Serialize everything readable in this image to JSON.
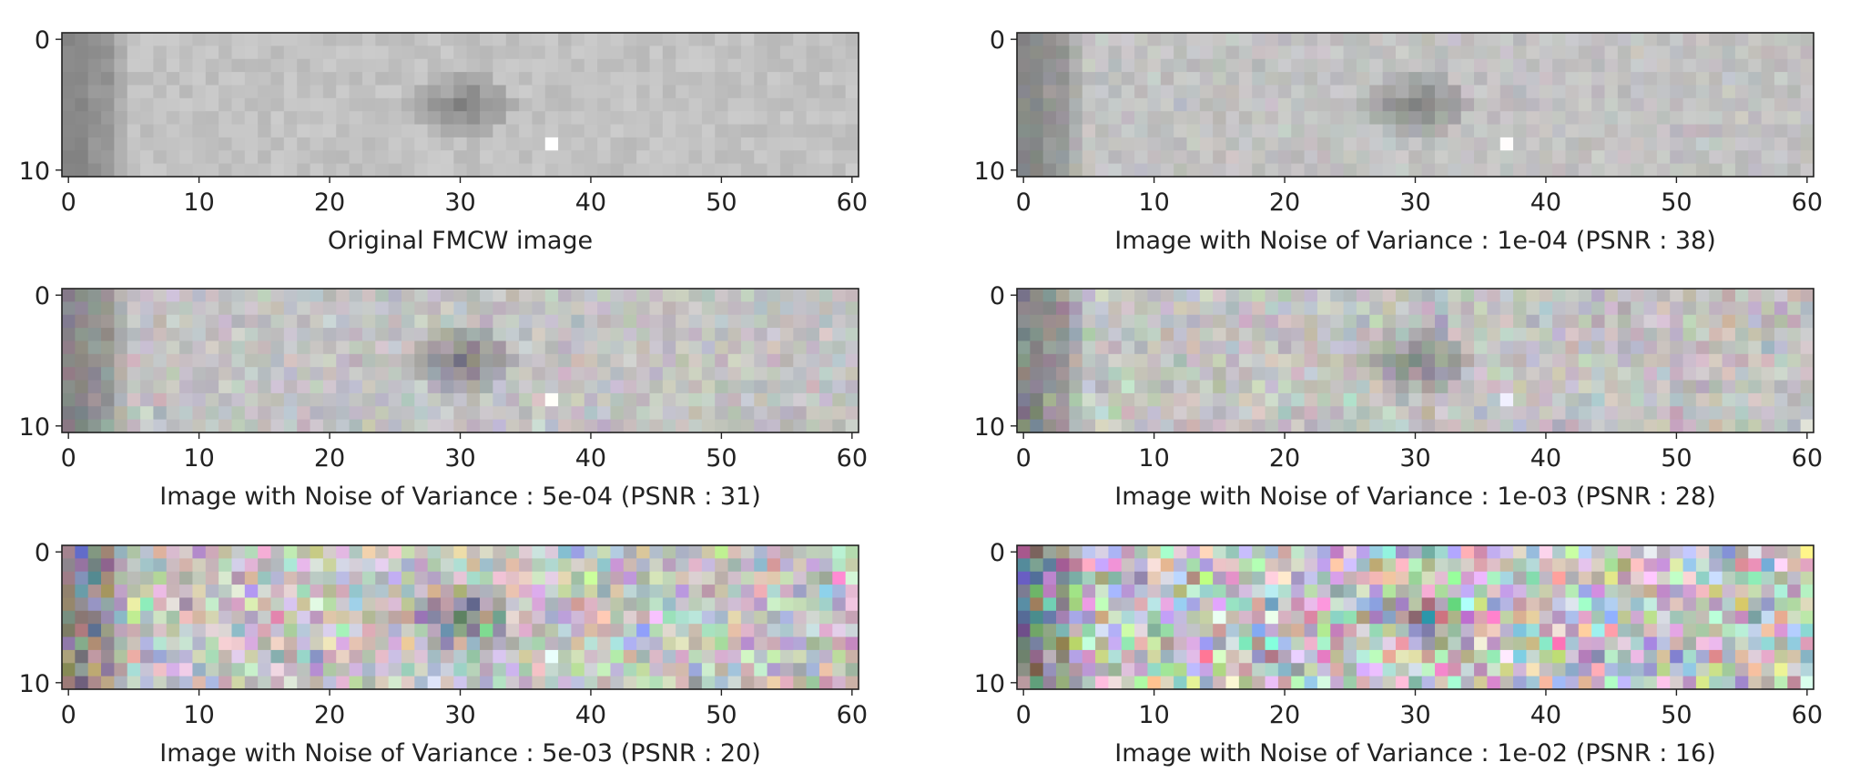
{
  "figure": {
    "colors": {
      "background": "#ffffff",
      "axis": "#222222",
      "text": "#222222"
    }
  },
  "chart_data": [
    {
      "type": "heatmap",
      "title": "",
      "xlabel": "Original FMCW image",
      "ylabel": "",
      "columns": 61,
      "rows": 11,
      "x_ticks": [
        0,
        10,
        20,
        30,
        40,
        50,
        60
      ],
      "y_ticks": [
        0,
        10
      ],
      "xlim": [
        -0.5,
        60.5
      ],
      "ylim": [
        10.5,
        -0.5
      ],
      "noise_variance": 0,
      "features": [
        "dark band at x 0-4",
        "dark blob near x 27-33, y 3-7",
        "bright pixel at x 37, y 8"
      ]
    },
    {
      "type": "heatmap",
      "title": "",
      "xlabel": "Image with Noise of Variance : 1e-04 (PSNR : 38)",
      "ylabel": "",
      "columns": 61,
      "rows": 11,
      "x_ticks": [
        0,
        10,
        20,
        30,
        40,
        50,
        60
      ],
      "y_ticks": [
        0,
        10
      ],
      "xlim": [
        -0.5,
        60.5
      ],
      "ylim": [
        10.5,
        -0.5
      ],
      "noise_variance": 0.0001,
      "psnr": 38
    },
    {
      "type": "heatmap",
      "title": "",
      "xlabel": "Image with Noise of Variance : 5e-04 (PSNR : 31)",
      "ylabel": "",
      "columns": 61,
      "rows": 11,
      "x_ticks": [
        0,
        10,
        20,
        30,
        40,
        50,
        60
      ],
      "y_ticks": [
        0,
        10
      ],
      "xlim": [
        -0.5,
        60.5
      ],
      "ylim": [
        10.5,
        -0.5
      ],
      "noise_variance": 0.0005,
      "psnr": 31
    },
    {
      "type": "heatmap",
      "title": "",
      "xlabel": "Image with Noise of Variance : 1e-03 (PSNR : 28)",
      "ylabel": "",
      "columns": 61,
      "rows": 11,
      "x_ticks": [
        0,
        10,
        20,
        30,
        40,
        50,
        60
      ],
      "y_ticks": [
        0,
        10
      ],
      "xlim": [
        -0.5,
        60.5
      ],
      "ylim": [
        10.5,
        -0.5
      ],
      "noise_variance": 0.001,
      "psnr": 28
    },
    {
      "type": "heatmap",
      "title": "",
      "xlabel": "Image with Noise of Variance : 5e-03 (PSNR : 20)",
      "ylabel": "",
      "columns": 61,
      "rows": 11,
      "x_ticks": [
        0,
        10,
        20,
        30,
        40,
        50,
        60
      ],
      "y_ticks": [
        0,
        10
      ],
      "xlim": [
        -0.5,
        60.5
      ],
      "ylim": [
        10.5,
        -0.5
      ],
      "noise_variance": 0.005,
      "psnr": 20
    },
    {
      "type": "heatmap",
      "title": "",
      "xlabel": "Image with Noise of Variance : 1e-02 (PSNR : 16)",
      "ylabel": "",
      "columns": 61,
      "rows": 11,
      "x_ticks": [
        0,
        10,
        20,
        30,
        40,
        50,
        60
      ],
      "y_ticks": [
        0,
        10
      ],
      "xlim": [
        -0.5,
        60.5
      ],
      "ylim": [
        10.5,
        -0.5
      ],
      "noise_variance": 0.01,
      "psnr": 16
    }
  ]
}
